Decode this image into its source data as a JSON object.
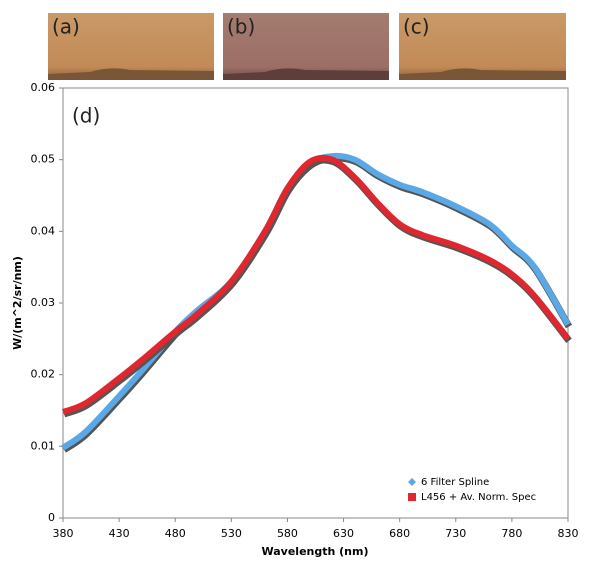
{
  "panels": [
    "(a)",
    "(b)",
    "(c)"
  ],
  "chart_data": {
    "type": "line",
    "panel_label": "(d)",
    "x_label": "Wavelength (nm)",
    "y_label": "W/(m^2/sr/nm)",
    "x": [
      380,
      400,
      430,
      450,
      480,
      500,
      530,
      560,
      580,
      600,
      620,
      640,
      660,
      680,
      700,
      730,
      760,
      780,
      800,
      830
    ],
    "series": [
      {
        "name": "6 Filter Spline",
        "color": "#5aa9e6",
        "marker": "diamond",
        "values": [
          0.0098,
          0.012,
          0.017,
          0.0205,
          0.026,
          0.029,
          0.033,
          0.04,
          0.046,
          0.0495,
          0.0505,
          0.05,
          0.048,
          0.0465,
          0.0455,
          0.0435,
          0.041,
          0.038,
          0.035,
          0.027
        ]
      },
      {
        "name": "L456 + Av. Norm. Spec",
        "color": "#e0262e",
        "marker": "square",
        "values": [
          0.0148,
          0.016,
          0.0195,
          0.022,
          0.026,
          0.0285,
          0.033,
          0.04,
          0.046,
          0.0497,
          0.05,
          0.0475,
          0.044,
          0.041,
          0.0395,
          0.038,
          0.036,
          0.034,
          0.031,
          0.025
        ]
      }
    ],
    "xlim": [
      380,
      830
    ],
    "xticks": [
      380,
      430,
      480,
      530,
      580,
      630,
      680,
      730,
      780,
      830
    ],
    "ylim": [
      0,
      0.06
    ],
    "yticks": [
      0,
      0.01,
      0.02,
      0.03,
      0.04,
      0.05,
      0.06
    ],
    "grid": false,
    "legend": "lower right"
  }
}
